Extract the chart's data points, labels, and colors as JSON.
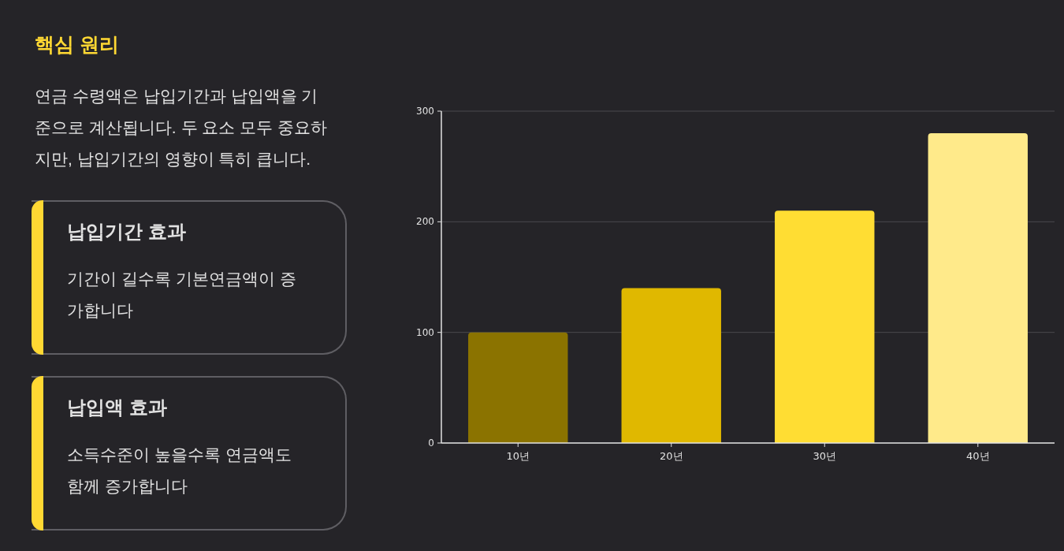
{
  "chart_data": [
    {
      "type": "other",
      "title": "핵심 원리",
      "subtitle": "연금 수령액은 납입기간과 납입액을 기준으로 계산됩니다. 두 요소 모두 중요하지만, 납입기간의 영향이 특히 큽니다.",
      "annotations": [
        "납입기간 효과",
        "기간이 길수록 기본연금액이 증가합니다",
        "납입액 효과",
        "소득수준이 높을수록 연금액도 함께 증가합니다"
      ]
    },
    {
      "type": "bar",
      "categories": [
        "10년",
        "20년",
        "30년",
        "40년"
      ],
      "values": [
        100,
        140,
        210,
        280
      ],
      "colors": [
        "#8b7300",
        "#e0b800",
        "#ffdd33",
        "#ffea8a"
      ],
      "ylim": [
        0,
        300
      ],
      "yticks": [
        0,
        100,
        200,
        300
      ],
      "grid": "y"
    }
  ]
}
